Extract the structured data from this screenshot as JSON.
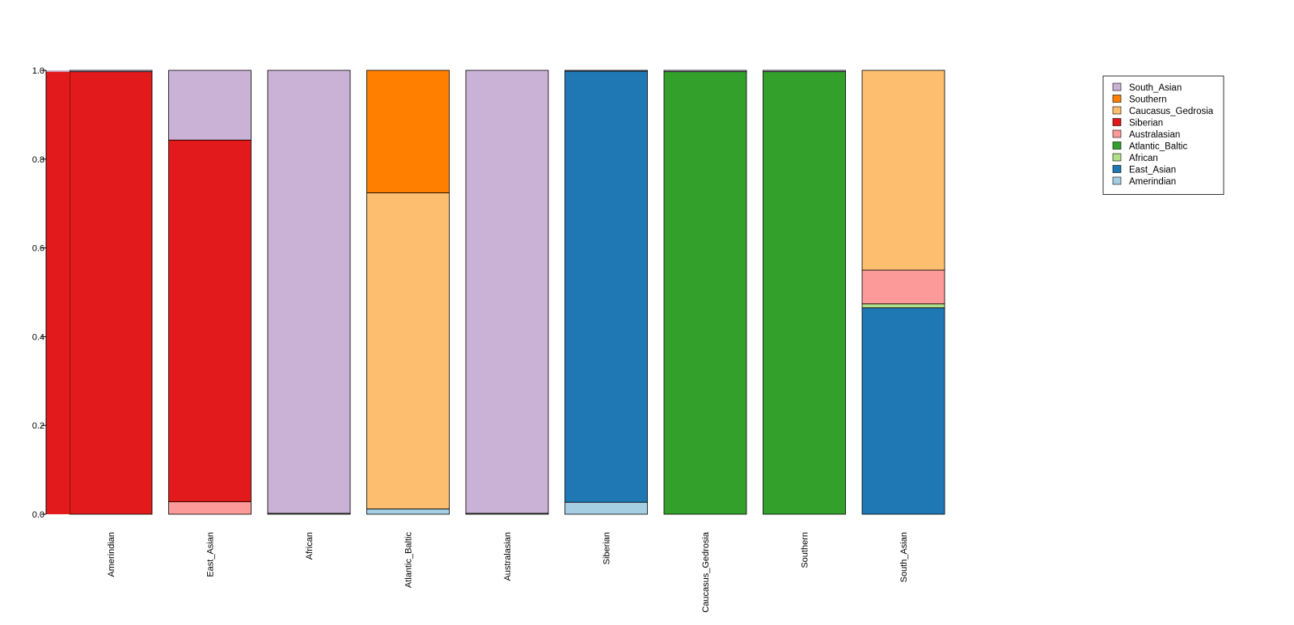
{
  "chart_data": {
    "type": "bar",
    "stacked": true,
    "orientation": "vertical",
    "title": "",
    "xlabel": "",
    "ylabel": "",
    "ylim": [
      0,
      1
    ],
    "yticks": [
      0.0,
      0.2,
      0.4,
      0.6,
      0.8,
      1.0
    ],
    "ytick_labels": [
      "0.0",
      "0.2",
      "0.4",
      "0.6",
      "0.8",
      "1.0"
    ],
    "grid": false,
    "legend_position": "top-right",
    "categories": [
      "Amerindian",
      "East_Asian",
      "African",
      "Atlantic_Baltic",
      "Australasian",
      "Siberian",
      "Caucasus_Gedrosia",
      "Southern",
      "South_Asian"
    ],
    "series": [
      {
        "name": "Amerindian",
        "color": "#a6cee3",
        "values": [
          0,
          0,
          0,
          0.012,
          0,
          0.027,
          0,
          0,
          0
        ]
      },
      {
        "name": "East_Asian",
        "color": "#1f78b4",
        "values": [
          0,
          0,
          0,
          0,
          0,
          0.971,
          0,
          0,
          0.465
        ]
      },
      {
        "name": "African",
        "color": "#b2df8a",
        "values": [
          0,
          0,
          0.002,
          0,
          0.002,
          0,
          0,
          0,
          0.009
        ]
      },
      {
        "name": "Atlantic_Baltic",
        "color": "#33a02c",
        "values": [
          0,
          0,
          0,
          0,
          0,
          0,
          0.997,
          0.997,
          0
        ]
      },
      {
        "name": "Australasian",
        "color": "#fb9a99",
        "values": [
          0,
          0.028,
          0,
          0,
          0,
          0,
          0,
          0,
          0.076
        ]
      },
      {
        "name": "Siberian",
        "color": "#e31a1c",
        "values": [
          0.997,
          0.815,
          0,
          0,
          0,
          0,
          0,
          0,
          0
        ]
      },
      {
        "name": "Caucasus_Gedrosia",
        "color": "#fdbf6f",
        "values": [
          0,
          0,
          0,
          0.712,
          0,
          0,
          0,
          0,
          0.45
        ]
      },
      {
        "name": "Southern",
        "color": "#ff7f00",
        "values": [
          0,
          0,
          0,
          0.276,
          0,
          0,
          0,
          0,
          0
        ]
      },
      {
        "name": "South_Asian",
        "color": "#cab2d6",
        "values": [
          0.003,
          0.157,
          0.998,
          0,
          0.998,
          0.002,
          0.003,
          0.003,
          0
        ]
      }
    ]
  }
}
